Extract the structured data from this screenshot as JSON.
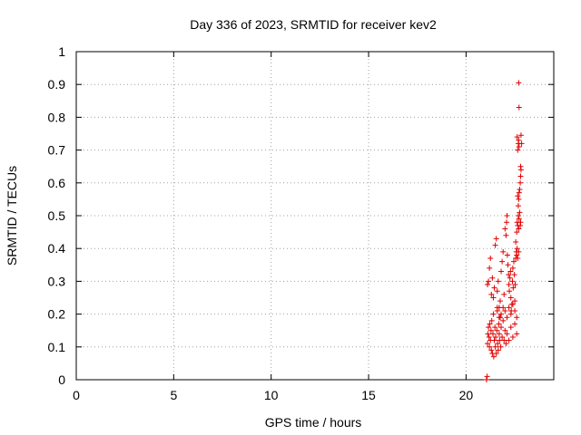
{
  "chart_data": {
    "type": "scatter",
    "title": "Day 336 of 2023, SRMTID for receiver kev2",
    "xlabel": "GPS time / hours",
    "ylabel": "SRMTID / TECUs",
    "xlim": [
      0,
      24.5
    ],
    "ylim": [
      0,
      1
    ],
    "xticks": [
      "0",
      "5",
      "10",
      "15",
      "20"
    ],
    "yticks": [
      "0",
      "0.1",
      "0.2",
      "0.3",
      "0.4",
      "0.5",
      "0.6",
      "0.7",
      "0.8",
      "0.9",
      "1"
    ],
    "grid": true,
    "marker": "+",
    "marker_color": "#e00000",
    "series": [
      {
        "points": [
          [
            21.05,
            0.0
          ],
          [
            21.08,
            0.01
          ],
          [
            21.1,
            0.11
          ],
          [
            21.12,
            0.14
          ],
          [
            21.15,
            0.16
          ],
          [
            21.18,
            0.13
          ],
          [
            21.2,
            0.1
          ],
          [
            21.22,
            0.17
          ],
          [
            21.25,
            0.12
          ],
          [
            21.28,
            0.15
          ],
          [
            21.3,
            0.09
          ],
          [
            21.32,
            0.18
          ],
          [
            21.35,
            0.08
          ],
          [
            21.38,
            0.14
          ],
          [
            21.4,
            0.2
          ],
          [
            21.42,
            0.07
          ],
          [
            21.45,
            0.12
          ],
          [
            21.48,
            0.16
          ],
          [
            21.5,
            0.1
          ],
          [
            21.52,
            0.13
          ],
          [
            21.55,
            0.08
          ],
          [
            21.58,
            0.15
          ],
          [
            21.6,
            0.22
          ],
          [
            21.62,
            0.11
          ],
          [
            21.65,
            0.09
          ],
          [
            21.68,
            0.17
          ],
          [
            21.7,
            0.14
          ],
          [
            21.72,
            0.12
          ],
          [
            21.75,
            0.19
          ],
          [
            21.78,
            0.1
          ],
          [
            21.8,
            0.16
          ],
          [
            21.85,
            0.13
          ],
          [
            21.9,
            0.18
          ],
          [
            21.95,
            0.12
          ],
          [
            22.0,
            0.15
          ],
          [
            22.05,
            0.11
          ],
          [
            22.1,
            0.14
          ],
          [
            22.2,
            0.12
          ],
          [
            22.3,
            0.16
          ],
          [
            22.4,
            0.13
          ],
          [
            22.5,
            0.17
          ],
          [
            22.6,
            0.14
          ],
          [
            21.1,
            0.29
          ],
          [
            21.15,
            0.3
          ],
          [
            21.2,
            0.34
          ],
          [
            21.25,
            0.37
          ],
          [
            21.3,
            0.26
          ],
          [
            21.35,
            0.31
          ],
          [
            21.4,
            0.25
          ],
          [
            21.45,
            0.28
          ],
          [
            21.5,
            0.41
          ],
          [
            21.55,
            0.43
          ],
          [
            21.6,
            0.27
          ],
          [
            21.65,
            0.3
          ],
          [
            21.7,
            0.22
          ],
          [
            21.75,
            0.24
          ],
          [
            21.8,
            0.33
          ],
          [
            21.85,
            0.36
          ],
          [
            21.9,
            0.39
          ],
          [
            21.95,
            0.26
          ],
          [
            22.0,
            0.46
          ],
          [
            22.05,
            0.44
          ],
          [
            22.08,
            0.48
          ],
          [
            22.1,
            0.5
          ],
          [
            22.12,
            0.38
          ],
          [
            22.15,
            0.35
          ],
          [
            22.18,
            0.32
          ],
          [
            22.2,
            0.29
          ],
          [
            22.22,
            0.27
          ],
          [
            22.25,
            0.31
          ],
          [
            22.28,
            0.33
          ],
          [
            22.3,
            0.25
          ],
          [
            22.32,
            0.21
          ],
          [
            22.35,
            0.23
          ],
          [
            22.38,
            0.3
          ],
          [
            22.4,
            0.34
          ],
          [
            22.42,
            0.28
          ],
          [
            22.45,
            0.36
          ],
          [
            22.48,
            0.32
          ],
          [
            22.5,
            0.24
          ],
          [
            22.52,
            0.29
          ],
          [
            22.55,
            0.37
          ],
          [
            22.58,
            0.39
          ],
          [
            21.6,
            0.21
          ],
          [
            21.7,
            0.19
          ],
          [
            21.8,
            0.2
          ],
          [
            21.9,
            0.22
          ],
          [
            22.0,
            0.21
          ],
          [
            22.1,
            0.19
          ],
          [
            22.2,
            0.22
          ],
          [
            22.3,
            0.2
          ],
          [
            22.4,
            0.23
          ],
          [
            22.5,
            0.21
          ],
          [
            22.6,
            0.19
          ],
          [
            22.6,
            0.45
          ],
          [
            22.62,
            0.48
          ],
          [
            22.65,
            0.47
          ],
          [
            22.68,
            0.5
          ],
          [
            22.7,
            0.46
          ],
          [
            22.72,
            0.49
          ],
          [
            22.75,
            0.51
          ],
          [
            22.78,
            0.47
          ],
          [
            22.8,
            0.48
          ],
          [
            22.68,
            0.53
          ],
          [
            22.7,
            0.55
          ],
          [
            22.72,
            0.57
          ],
          [
            22.65,
            0.56
          ],
          [
            22.75,
            0.58
          ],
          [
            22.78,
            0.6
          ],
          [
            22.8,
            0.62
          ],
          [
            22.82,
            0.64
          ],
          [
            22.8,
            0.65
          ],
          [
            22.65,
            0.7
          ],
          [
            22.68,
            0.72
          ],
          [
            22.7,
            0.73
          ],
          [
            22.62,
            0.74
          ],
          [
            22.72,
            0.71
          ],
          [
            22.72,
            0.83
          ],
          [
            22.7,
            0.905
          ],
          [
            22.82,
            0.745
          ],
          [
            22.85,
            0.72
          ],
          [
            22.6,
            0.38
          ],
          [
            22.62,
            0.4
          ],
          [
            22.65,
            0.37
          ],
          [
            22.7,
            0.39
          ],
          [
            22.55,
            0.42
          ]
        ]
      }
    ]
  }
}
